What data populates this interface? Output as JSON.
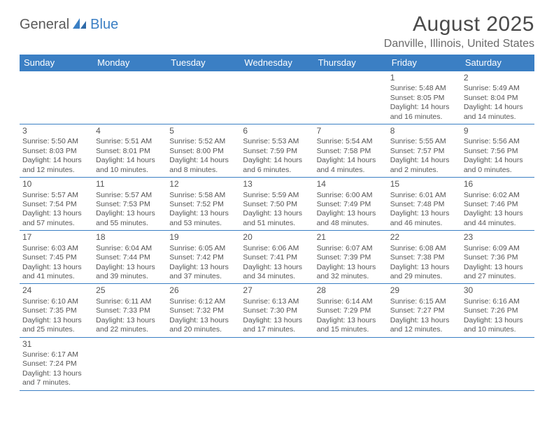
{
  "logo": {
    "part1": "General",
    "part2": "Blue"
  },
  "title": "August 2025",
  "location": "Danville, Illinois, United States",
  "colors": {
    "header_bg": "#3b7fc4",
    "header_text": "#ffffff",
    "border": "#3b7fc4",
    "text": "#555555",
    "title_text": "#4a4a4a",
    "location_text": "#6a6a6a",
    "logo_gray": "#5a5a5a",
    "logo_blue": "#3b7fc4",
    "background": "#ffffff"
  },
  "table": {
    "type": "table",
    "columns": [
      "Sunday",
      "Monday",
      "Tuesday",
      "Wednesday",
      "Thursday",
      "Friday",
      "Saturday"
    ],
    "font_size_header": 13,
    "font_size_cell": 10.5,
    "font_size_daynum": 12
  },
  "weeks": [
    [
      null,
      null,
      null,
      null,
      null,
      {
        "d": "1",
        "sr": "Sunrise: 5:48 AM",
        "ss": "Sunset: 8:05 PM",
        "dl": "Daylight: 14 hours and 16 minutes."
      },
      {
        "d": "2",
        "sr": "Sunrise: 5:49 AM",
        "ss": "Sunset: 8:04 PM",
        "dl": "Daylight: 14 hours and 14 minutes."
      }
    ],
    [
      {
        "d": "3",
        "sr": "Sunrise: 5:50 AM",
        "ss": "Sunset: 8:03 PM",
        "dl": "Daylight: 14 hours and 12 minutes."
      },
      {
        "d": "4",
        "sr": "Sunrise: 5:51 AM",
        "ss": "Sunset: 8:01 PM",
        "dl": "Daylight: 14 hours and 10 minutes."
      },
      {
        "d": "5",
        "sr": "Sunrise: 5:52 AM",
        "ss": "Sunset: 8:00 PM",
        "dl": "Daylight: 14 hours and 8 minutes."
      },
      {
        "d": "6",
        "sr": "Sunrise: 5:53 AM",
        "ss": "Sunset: 7:59 PM",
        "dl": "Daylight: 14 hours and 6 minutes."
      },
      {
        "d": "7",
        "sr": "Sunrise: 5:54 AM",
        "ss": "Sunset: 7:58 PM",
        "dl": "Daylight: 14 hours and 4 minutes."
      },
      {
        "d": "8",
        "sr": "Sunrise: 5:55 AM",
        "ss": "Sunset: 7:57 PM",
        "dl": "Daylight: 14 hours and 2 minutes."
      },
      {
        "d": "9",
        "sr": "Sunrise: 5:56 AM",
        "ss": "Sunset: 7:56 PM",
        "dl": "Daylight: 14 hours and 0 minutes."
      }
    ],
    [
      {
        "d": "10",
        "sr": "Sunrise: 5:57 AM",
        "ss": "Sunset: 7:54 PM",
        "dl": "Daylight: 13 hours and 57 minutes."
      },
      {
        "d": "11",
        "sr": "Sunrise: 5:57 AM",
        "ss": "Sunset: 7:53 PM",
        "dl": "Daylight: 13 hours and 55 minutes."
      },
      {
        "d": "12",
        "sr": "Sunrise: 5:58 AM",
        "ss": "Sunset: 7:52 PM",
        "dl": "Daylight: 13 hours and 53 minutes."
      },
      {
        "d": "13",
        "sr": "Sunrise: 5:59 AM",
        "ss": "Sunset: 7:50 PM",
        "dl": "Daylight: 13 hours and 51 minutes."
      },
      {
        "d": "14",
        "sr": "Sunrise: 6:00 AM",
        "ss": "Sunset: 7:49 PM",
        "dl": "Daylight: 13 hours and 48 minutes."
      },
      {
        "d": "15",
        "sr": "Sunrise: 6:01 AM",
        "ss": "Sunset: 7:48 PM",
        "dl": "Daylight: 13 hours and 46 minutes."
      },
      {
        "d": "16",
        "sr": "Sunrise: 6:02 AM",
        "ss": "Sunset: 7:46 PM",
        "dl": "Daylight: 13 hours and 44 minutes."
      }
    ],
    [
      {
        "d": "17",
        "sr": "Sunrise: 6:03 AM",
        "ss": "Sunset: 7:45 PM",
        "dl": "Daylight: 13 hours and 41 minutes."
      },
      {
        "d": "18",
        "sr": "Sunrise: 6:04 AM",
        "ss": "Sunset: 7:44 PM",
        "dl": "Daylight: 13 hours and 39 minutes."
      },
      {
        "d": "19",
        "sr": "Sunrise: 6:05 AM",
        "ss": "Sunset: 7:42 PM",
        "dl": "Daylight: 13 hours and 37 minutes."
      },
      {
        "d": "20",
        "sr": "Sunrise: 6:06 AM",
        "ss": "Sunset: 7:41 PM",
        "dl": "Daylight: 13 hours and 34 minutes."
      },
      {
        "d": "21",
        "sr": "Sunrise: 6:07 AM",
        "ss": "Sunset: 7:39 PM",
        "dl": "Daylight: 13 hours and 32 minutes."
      },
      {
        "d": "22",
        "sr": "Sunrise: 6:08 AM",
        "ss": "Sunset: 7:38 PM",
        "dl": "Daylight: 13 hours and 29 minutes."
      },
      {
        "d": "23",
        "sr": "Sunrise: 6:09 AM",
        "ss": "Sunset: 7:36 PM",
        "dl": "Daylight: 13 hours and 27 minutes."
      }
    ],
    [
      {
        "d": "24",
        "sr": "Sunrise: 6:10 AM",
        "ss": "Sunset: 7:35 PM",
        "dl": "Daylight: 13 hours and 25 minutes."
      },
      {
        "d": "25",
        "sr": "Sunrise: 6:11 AM",
        "ss": "Sunset: 7:33 PM",
        "dl": "Daylight: 13 hours and 22 minutes."
      },
      {
        "d": "26",
        "sr": "Sunrise: 6:12 AM",
        "ss": "Sunset: 7:32 PM",
        "dl": "Daylight: 13 hours and 20 minutes."
      },
      {
        "d": "27",
        "sr": "Sunrise: 6:13 AM",
        "ss": "Sunset: 7:30 PM",
        "dl": "Daylight: 13 hours and 17 minutes."
      },
      {
        "d": "28",
        "sr": "Sunrise: 6:14 AM",
        "ss": "Sunset: 7:29 PM",
        "dl": "Daylight: 13 hours and 15 minutes."
      },
      {
        "d": "29",
        "sr": "Sunrise: 6:15 AM",
        "ss": "Sunset: 7:27 PM",
        "dl": "Daylight: 13 hours and 12 minutes."
      },
      {
        "d": "30",
        "sr": "Sunrise: 6:16 AM",
        "ss": "Sunset: 7:26 PM",
        "dl": "Daylight: 13 hours and 10 minutes."
      }
    ],
    [
      {
        "d": "31",
        "sr": "Sunrise: 6:17 AM",
        "ss": "Sunset: 7:24 PM",
        "dl": "Daylight: 13 hours and 7 minutes."
      },
      null,
      null,
      null,
      null,
      null,
      null
    ]
  ]
}
